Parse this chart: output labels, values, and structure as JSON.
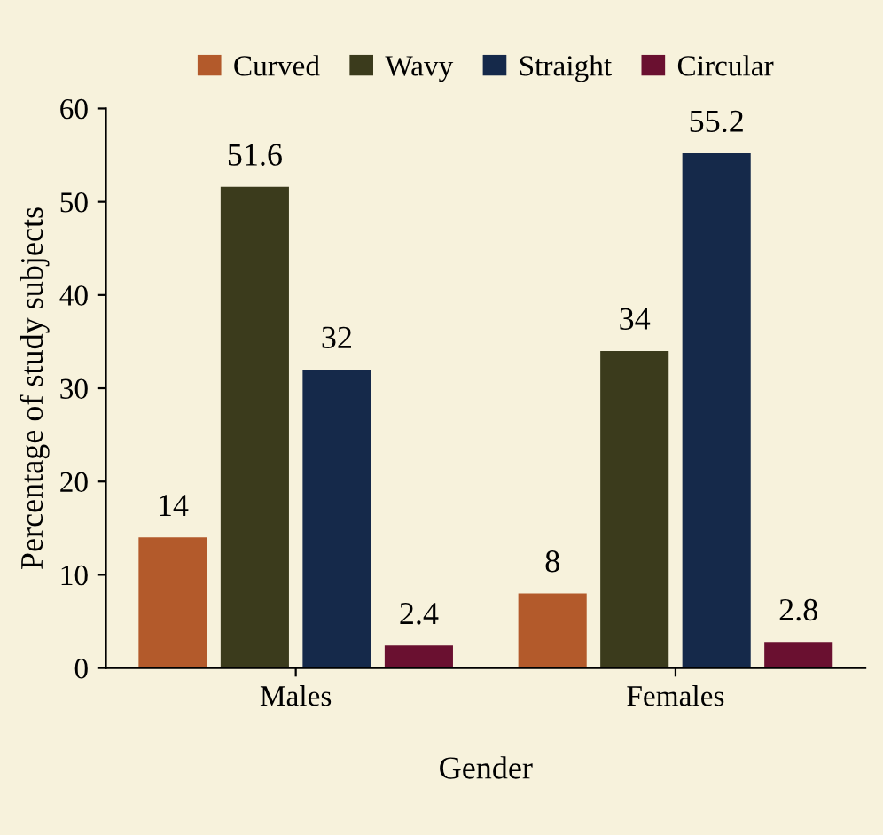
{
  "chart_data": {
    "type": "bar",
    "xlabel": "Gender",
    "ylabel": "Percentage of study subjects",
    "categories": [
      "Males",
      "Females"
    ],
    "series": [
      {
        "name": "Curved",
        "color": "#b35a2b",
        "values": [
          14,
          8
        ]
      },
      {
        "name": "Wavy",
        "color": "#3b3b1c",
        "values": [
          51.6,
          34
        ]
      },
      {
        "name": "Straight",
        "color": "#15294a",
        "values": [
          32,
          55.2
        ]
      },
      {
        "name": "Circular",
        "color": "#6a1030",
        "values": [
          2.4,
          2.8
        ]
      }
    ],
    "ylim": [
      0,
      60
    ],
    "yticks": [
      0,
      10,
      20,
      30,
      40,
      50,
      60
    ],
    "grid": false,
    "legend": "top",
    "data_labels": true
  }
}
